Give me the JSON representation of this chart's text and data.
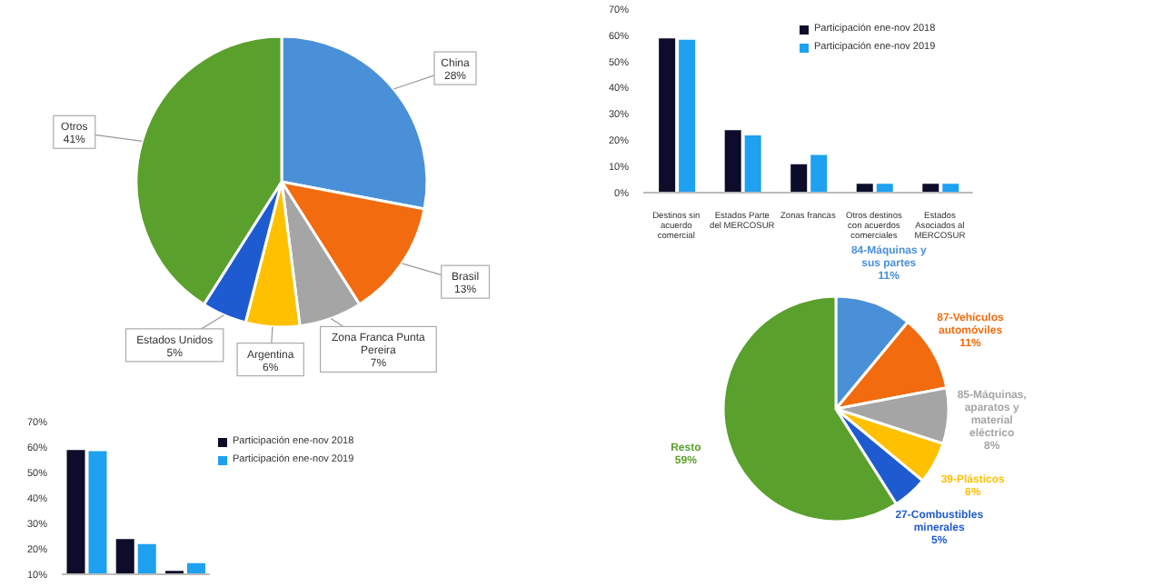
{
  "chart_data": [
    {
      "type": "pie",
      "categories": [
        "China",
        "Brasil",
        "Zona Franca Punta Pereira",
        "Argentina",
        "Estados Unidos",
        "Otros"
      ],
      "values": [
        28,
        13,
        7,
        6,
        5,
        41
      ],
      "value_labels": [
        "28%",
        "13%",
        "7%",
        "6%",
        "5%",
        "41%"
      ],
      "colors": [
        "#4a90d9",
        "#f26b0f",
        "#a5a5a5",
        "#ffc000",
        "#1f5bd0",
        "#5aa02c"
      ],
      "legend": false
    },
    {
      "type": "bar",
      "categories": [
        "Destinos sin acuerdo comercial",
        "Estados Parte del MERCOSUR",
        "Zonas francas",
        "Otros destinos con acuerdos comerciales",
        "Estados Asociados al MERCOSUR"
      ],
      "series": [
        {
          "name": "Participación ene-nov 2018",
          "color": "#0d0d2b",
          "values": [
            58.5,
            23.5,
            10.5,
            3,
            3
          ]
        },
        {
          "name": "Participación ene-nov 2019",
          "color": "#1ea1f0",
          "values": [
            58,
            21.5,
            14,
            3,
            3
          ]
        }
      ],
      "ylim": [
        0,
        70
      ],
      "yticks": [
        {
          "value": 0,
          "label": "0%"
        },
        {
          "value": 10,
          "label": "10%"
        },
        {
          "value": 20,
          "label": "20%"
        },
        {
          "value": 30,
          "label": "30%"
        },
        {
          "value": 40,
          "label": "40%"
        },
        {
          "value": 50,
          "label": "50%"
        },
        {
          "value": 60,
          "label": "60%"
        },
        {
          "value": 70,
          "label": "70%"
        }
      ],
      "grid": false,
      "legend": "top right"
    },
    {
      "type": "pie",
      "categories": [
        "84-Máquinas y sus partes",
        "87-Vehículos automóviles",
        "85-Máquinas, aparatos y material eléctrico",
        "39-Plásticos",
        "27-Combustibles minerales",
        "Resto"
      ],
      "values": [
        11,
        11,
        8,
        6,
        5,
        59
      ],
      "value_labels": [
        "11%",
        "11%",
        "8%",
        "6%",
        "5%",
        "59%"
      ],
      "colors": [
        "#4a90d9",
        "#f26b0f",
        "#a5a5a5",
        "#ffc000",
        "#1f5bd0",
        "#5aa02c"
      ],
      "legend": false
    },
    {
      "type": "bar",
      "categories": [
        null,
        null,
        null
      ],
      "series": [
        {
          "name": "Participación ene-nov 2018",
          "color": "#0d0d2b",
          "values": [
            58.5,
            23.5,
            11
          ]
        },
        {
          "name": "Participación ene-nov 2019",
          "color": "#1ea1f0",
          "values": [
            58,
            21.5,
            14
          ]
        }
      ],
      "ylim": [
        10,
        70
      ],
      "yticks": [
        {
          "value": 10,
          "label": "10%"
        },
        {
          "value": 20,
          "label": "20%"
        },
        {
          "value": 30,
          "label": "30%"
        },
        {
          "value": 40,
          "label": "40%"
        },
        {
          "value": 50,
          "label": "50%"
        },
        {
          "value": 60,
          "label": "60%"
        },
        {
          "value": 70,
          "label": "70%"
        }
      ],
      "grid": false,
      "legend": "top right",
      "tick_labels": "y"
    }
  ]
}
